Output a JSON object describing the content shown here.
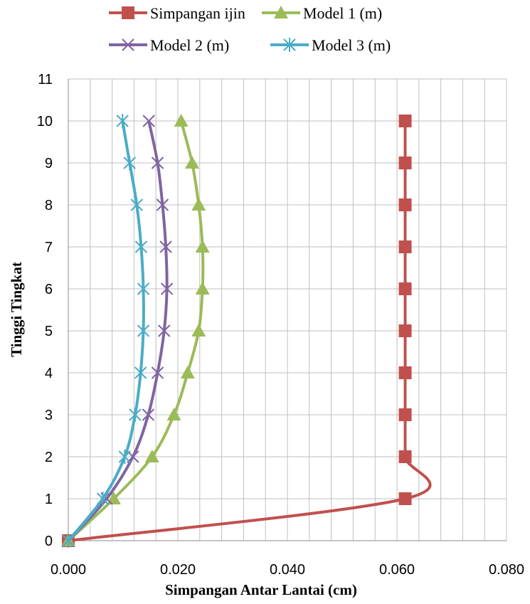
{
  "chart_data": {
    "type": "line",
    "xlabel": "Simpangan Antar Lantai (cm)",
    "ylabel": "Tinggi Tingkat",
    "xlim": [
      0,
      0.08
    ],
    "ylim": [
      0,
      11
    ],
    "x_ticks": [
      "0.000",
      "0.020",
      "0.040",
      "0.060",
      "0.080"
    ],
    "y_ticks": [
      "0",
      "1",
      "2",
      "3",
      "4",
      "5",
      "6",
      "7",
      "8",
      "9",
      "10",
      "11"
    ],
    "grid": true,
    "legend_position": "top",
    "series": [
      {
        "name": "Simpangan ijin",
        "color": "#c0504d",
        "marker": "square",
        "points": [
          [
            0,
            0
          ],
          [
            0.0615,
            1
          ],
          [
            0.0615,
            2
          ],
          [
            0.0615,
            3
          ],
          [
            0.0615,
            4
          ],
          [
            0.0615,
            5
          ],
          [
            0.0615,
            6
          ],
          [
            0.0615,
            7
          ],
          [
            0.0615,
            8
          ],
          [
            0.0615,
            9
          ],
          [
            0.0615,
            10
          ]
        ]
      },
      {
        "name": "Model 1 (m)",
        "color": "#9bbb59",
        "marker": "triangle",
        "points": [
          [
            0,
            0
          ],
          [
            0.0083,
            1
          ],
          [
            0.0153,
            2
          ],
          [
            0.0193,
            3
          ],
          [
            0.0218,
            4
          ],
          [
            0.0238,
            5
          ],
          [
            0.0245,
            6
          ],
          [
            0.0245,
            7
          ],
          [
            0.0238,
            8
          ],
          [
            0.0226,
            9
          ],
          [
            0.0206,
            10
          ]
        ]
      },
      {
        "name": "Model 2 (m)",
        "color": "#8064a2",
        "marker": "x",
        "points": [
          [
            0,
            0
          ],
          [
            0.007,
            1
          ],
          [
            0.0118,
            2
          ],
          [
            0.0146,
            3
          ],
          [
            0.0163,
            4
          ],
          [
            0.0175,
            5
          ],
          [
            0.018,
            6
          ],
          [
            0.0178,
            7
          ],
          [
            0.0172,
            8
          ],
          [
            0.0163,
            9
          ],
          [
            0.0147,
            10
          ]
        ]
      },
      {
        "name": "Model 3 (m)",
        "color": "#4bacc6",
        "marker": "asterisk",
        "points": [
          [
            0,
            0
          ],
          [
            0.0063,
            1
          ],
          [
            0.0103,
            2
          ],
          [
            0.0122,
            3
          ],
          [
            0.0132,
            4
          ],
          [
            0.0137,
            5
          ],
          [
            0.0137,
            6
          ],
          [
            0.0133,
            7
          ],
          [
            0.0125,
            8
          ],
          [
            0.0112,
            9
          ],
          [
            0.0099,
            10
          ]
        ]
      }
    ]
  }
}
